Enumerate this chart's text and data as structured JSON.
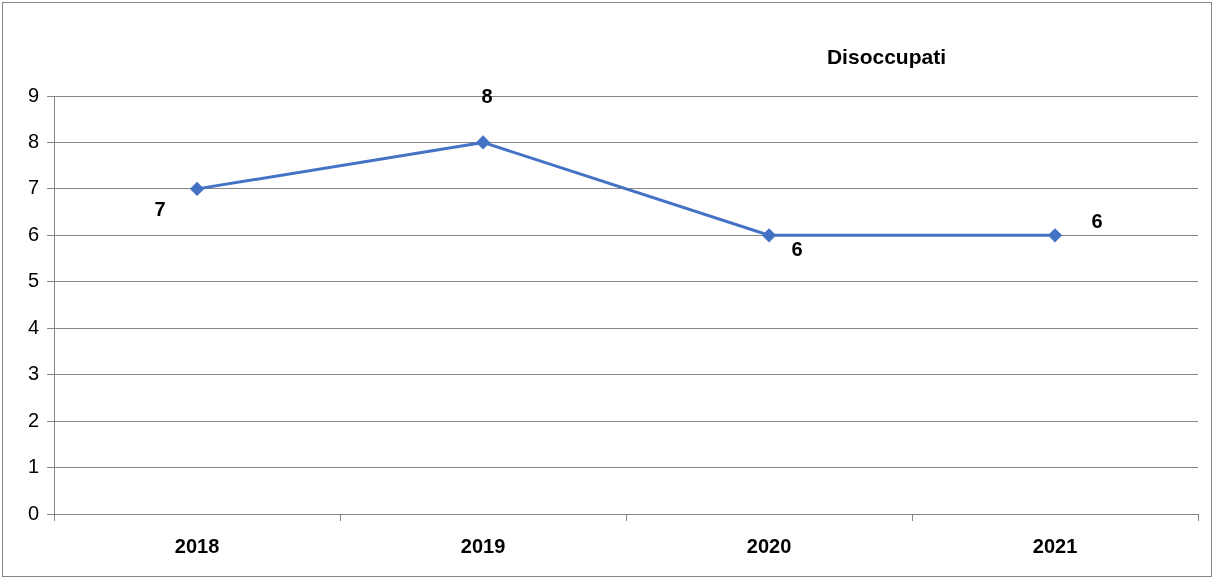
{
  "chart_data": {
    "type": "line",
    "title": "Disoccupati",
    "categories": [
      "2018",
      "2019",
      "2020",
      "2021"
    ],
    "series": [
      {
        "color": "#4472c4",
        "values": [
          7,
          8,
          6,
          6
        ]
      }
    ],
    "ylim": [
      0,
      9
    ],
    "yticks": [
      0,
      1,
      2,
      3,
      4,
      5,
      6,
      7,
      8,
      9
    ],
    "grid": "y",
    "legend": false,
    "marker": "diamond",
    "line_style": "solid",
    "data_labels": true
  }
}
